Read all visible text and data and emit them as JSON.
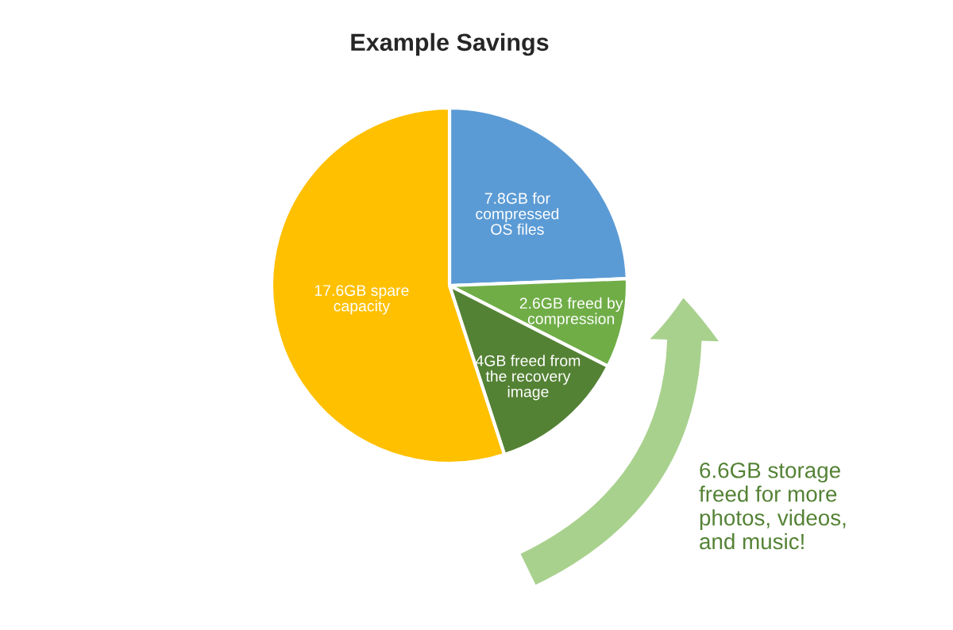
{
  "chart_data": {
    "type": "pie",
    "title": "Example Savings",
    "categories": [
      "7.8GB for\ncompressed\nOS files",
      "2.6GB freed by\ncompression",
      "4GB freed from\nthe recovery\nimage",
      "17.6GB spare\ncapacity"
    ],
    "values": [
      7.8,
      2.6,
      4,
      17.6
    ],
    "colors": [
      "#5b9bd5",
      "#70ad47",
      "#548235",
      "#ffc000"
    ],
    "annotations": [
      "6.6GB storage\nfreed for more\nphotos, videos,\nand music!"
    ]
  }
}
